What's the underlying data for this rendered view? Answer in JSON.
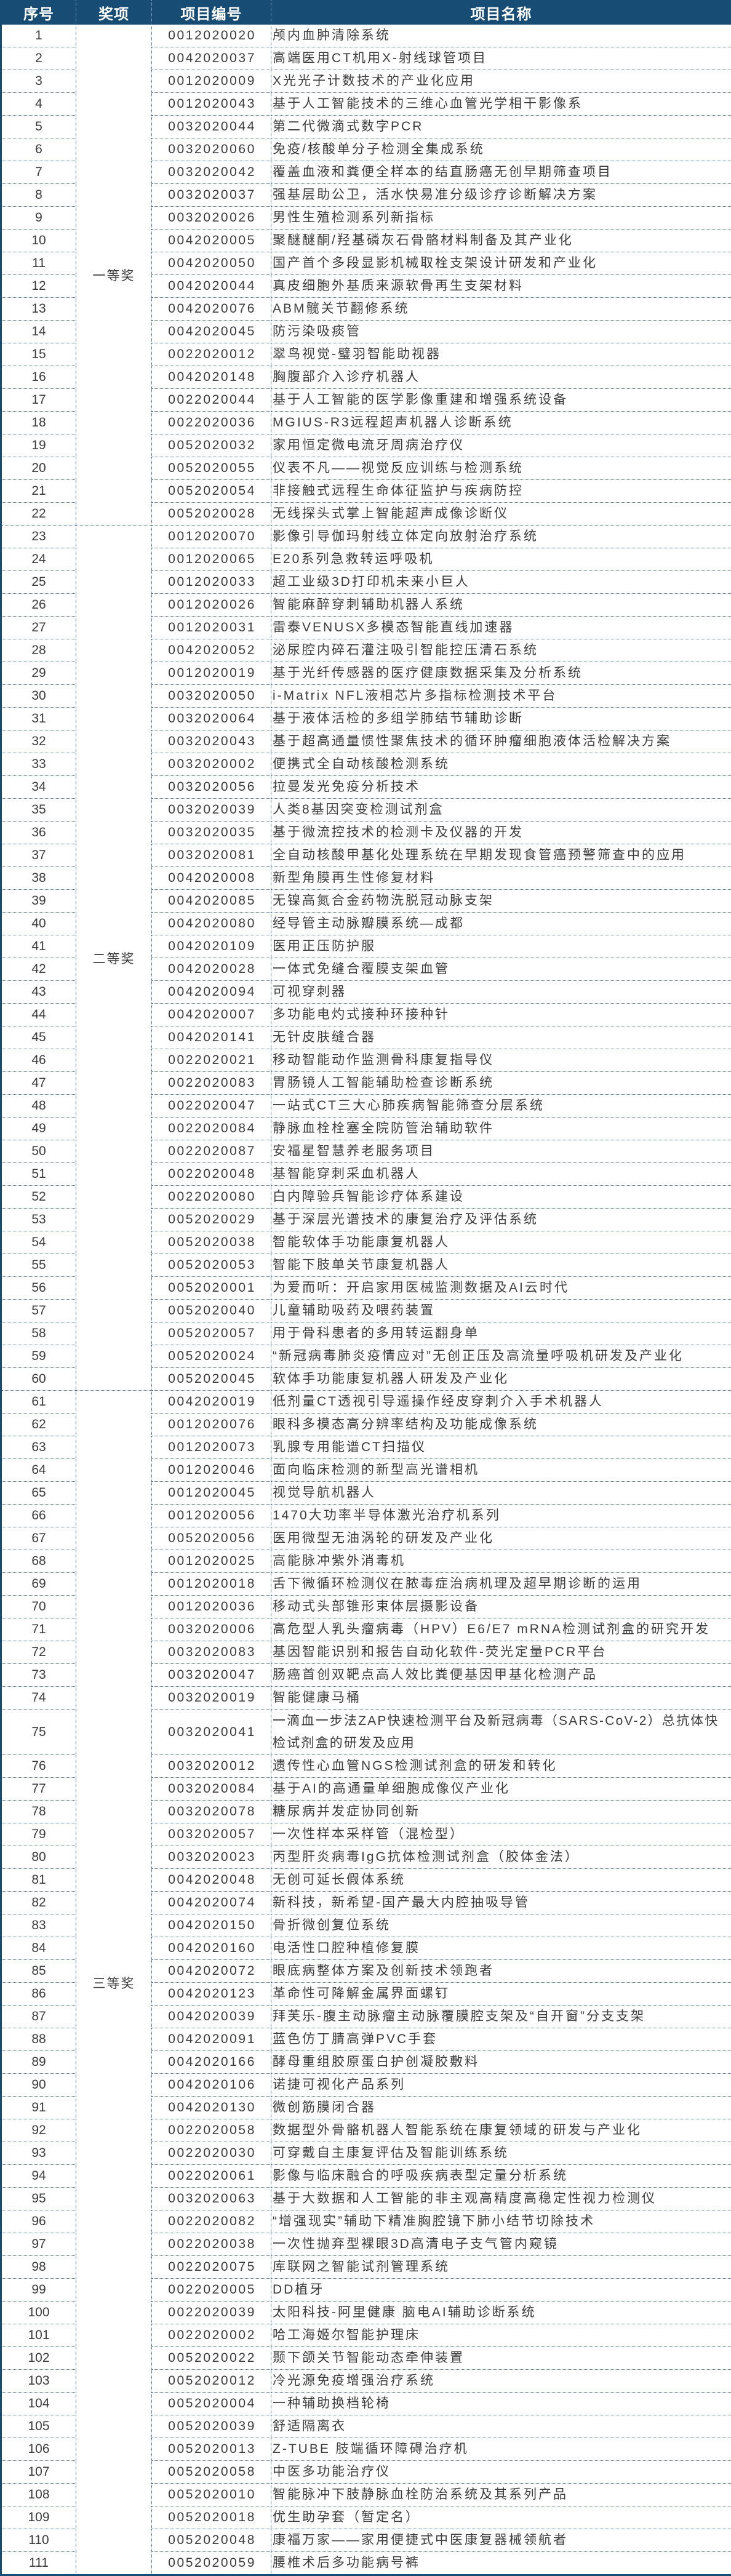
{
  "header": {
    "no": "序号",
    "award": "奖项",
    "code": "项目编号",
    "name": "项目名称"
  },
  "groups": [
    {
      "award": "一等奖",
      "rows": [
        [
          "1",
          "0012020020",
          "颅内血肿清除系统"
        ],
        [
          "2",
          "0042020037",
          "高端医用CT机用X-射线球管项目"
        ],
        [
          "3",
          "0012020009",
          "X光光子计数技术的产业化应用"
        ],
        [
          "4",
          "0012020043",
          "基于人工智能技术的三维心血管光学相干影像系"
        ],
        [
          "5",
          "0032020044",
          "第二代微滴式数字PCR"
        ],
        [
          "6",
          "0032020060",
          "免疫/核酸单分子检测全集成系统"
        ],
        [
          "7",
          "0032020042",
          "覆盖血液和粪便全样本的结直肠癌无创早期筛查项目"
        ],
        [
          "8",
          "0032020037",
          "强基层助公卫，活水快易准分级诊疗诊断解决方案"
        ],
        [
          "9",
          "0032020026",
          "男性生殖检测系列新指标"
        ],
        [
          "10",
          "0042020005",
          "聚醚醚酮/羟基磷灰石骨骼材料制备及其产业化"
        ],
        [
          "11",
          "0042020050",
          "国产首个多段显影机械取栓支架设计研发和产业化"
        ],
        [
          "12",
          "0042020044",
          "真皮细胞外基质来源软骨再生支架材料"
        ],
        [
          "13",
          "0042020076",
          "ABM髋关节翻修系统"
        ],
        [
          "14",
          "0042020045",
          "防污染吸痰管"
        ],
        [
          "15",
          "0022020012",
          "翠鸟视觉-璧羽智能助视器"
        ],
        [
          "16",
          "0042020148",
          "胸腹部介入诊疗机器人"
        ],
        [
          "17",
          "0022020044",
          "基于人工智能的医学影像重建和增强系统设备"
        ],
        [
          "18",
          "0022020036",
          "MGIUS-R3远程超声机器人诊断系统"
        ],
        [
          "19",
          "0052020032",
          "家用恒定微电流牙周病治疗仪"
        ],
        [
          "20",
          "0052020055",
          "仪表不凡——视觉反应训练与检测系统"
        ],
        [
          "21",
          "0052020054",
          "非接触式远程生命体征监护与疾病防控"
        ],
        [
          "22",
          "0052020028",
          "无线探头式掌上智能超声成像诊断仪"
        ]
      ]
    },
    {
      "award": "二等奖",
      "rows": [
        [
          "23",
          "0012020070",
          "影像引导伽玛射线立体定向放射治疗系统"
        ],
        [
          "24",
          "0012020065",
          "E20系列急救转运呼吸机"
        ],
        [
          "25",
          "0012020033",
          "超工业级3D打印机未来小巨人"
        ],
        [
          "26",
          "0012020026",
          "智能麻醉穿刺辅助机器人系统"
        ],
        [
          "27",
          "0012020031",
          "雷泰VENUSX多模态智能直线加速器"
        ],
        [
          "28",
          "0042020052",
          "泌尿腔内碎石灌注吸引智能控压清石系统"
        ],
        [
          "29",
          "0012020019",
          "基于光纤传感器的医疗健康数据采集及分析系统"
        ],
        [
          "30",
          "0032020050",
          "i-Matrix NFL液相芯片多指标检测技术平台"
        ],
        [
          "31",
          "0032020064",
          "基于液体活检的多组学肺结节辅助诊断"
        ],
        [
          "32",
          "0032020043",
          "基于超高通量惯性聚焦技术的循环肿瘤细胞液体活检解决方案"
        ],
        [
          "33",
          "0032020002",
          "便携式全自动核酸检测系统"
        ],
        [
          "34",
          "0032020056",
          "拉曼发光免疫分析技术"
        ],
        [
          "35",
          "0032020039",
          "人类8基因突变检测试剂盒"
        ],
        [
          "36",
          "0032020035",
          "基于微流控技术的检测卡及仪器的开发"
        ],
        [
          "37",
          "0032020081",
          "全自动核酸甲基化处理系统在早期发现食管癌预警筛查中的应用"
        ],
        [
          "38",
          "0042020008",
          "新型角膜再生性修复材料"
        ],
        [
          "39",
          "0042020085",
          "无镍高氮合金药物洗脱冠动脉支架"
        ],
        [
          "40",
          "0042020080",
          "经导管主动脉瓣膜系统—成都"
        ],
        [
          "41",
          "0042020109",
          "医用正压防护服"
        ],
        [
          "42",
          "0042020028",
          "一体式免缝合覆膜支架血管"
        ],
        [
          "43",
          "0042020094",
          "可视穿刺器"
        ],
        [
          "44",
          "0042020007",
          "多功能电灼式接种环接种针"
        ],
        [
          "45",
          "0042020141",
          "无针皮肤缝合器"
        ],
        [
          "46",
          "0022020021",
          "移动智能动作监测骨科康复指导仪"
        ],
        [
          "47",
          "0022020083",
          "胃肠镜人工智能辅助检查诊断系统"
        ],
        [
          "48",
          "0022020047",
          "一站式CT三大心肺疾病智能筛查分层系统"
        ],
        [
          "49",
          "0022020084",
          "静脉血栓栓塞全院防管治辅助软件"
        ],
        [
          "50",
          "0022020087",
          "安福星智慧养老服务项目"
        ],
        [
          "51",
          "0022020048",
          "基智能穿刺采血机器人"
        ],
        [
          "52",
          "0022020080",
          "白内障验兵智能诊疗体系建设"
        ],
        [
          "53",
          "0052020029",
          "基于深层光谱技术的康复治疗及评估系统"
        ],
        [
          "54",
          "0052020038",
          "智能软体手功能康复机器人"
        ],
        [
          "55",
          "0052020053",
          "智能下肢单关节康复机器人"
        ],
        [
          "56",
          "0052020001",
          "为爱而听：开启家用医械监测数据及AI云时代"
        ],
        [
          "57",
          "0052020040",
          "儿童辅助吸药及喂药装置"
        ],
        [
          "58",
          "0052020057",
          "用于骨科患者的多用转运翻身单"
        ],
        [
          "59",
          "0052020024",
          "“新冠病毒肺炎疫情应对”无创正压及高流量呼吸机研发及产业化"
        ],
        [
          "60",
          "0052020045",
          "软体手功能康复机器人研发及产业化"
        ]
      ]
    },
    {
      "award": "三等奖",
      "rows": [
        [
          "61",
          "0042020019",
          "低剂量CT透视引导遥操作经皮穿刺介入手术机器人"
        ],
        [
          "62",
          "0012020076",
          "眼科多模态高分辨率结构及功能成像系统"
        ],
        [
          "63",
          "0012020073",
          "乳腺专用能谱CT扫描仪"
        ],
        [
          "64",
          "0012020046",
          "面向临床检测的新型高光谱相机"
        ],
        [
          "65",
          "0012020045",
          "视觉导航机器人"
        ],
        [
          "66",
          "0012020056",
          "1470大功率半导体激光治疗机系列"
        ],
        [
          "67",
          "0052020056",
          "医用微型无油涡轮的研发及产业化"
        ],
        [
          "68",
          "0012020025",
          "高能脉冲紫外消毒机"
        ],
        [
          "69",
          "0012020018",
          "舌下微循环检测仪在脓毒症治病机理及超早期诊断的运用"
        ],
        [
          "70",
          "0012020036",
          "移动式头部锥形束体层摄影设备"
        ],
        [
          "71",
          "0032020006",
          "高危型人乳头瘤病毒（HPV）E6/E7 mRNA检测试剂盒的研究开发"
        ],
        [
          "72",
          "0032020083",
          "基因智能识别和报告自动化软件-荧光定量PCR平台"
        ],
        [
          "73",
          "0032020047",
          "肠癌首创双靶点高人效比粪便基因甲基化检测产品"
        ],
        [
          "74",
          "0032020019",
          "智能健康马桶"
        ],
        [
          "75",
          "0032020041",
          "一滴血一步法ZAP快速检测平台及新冠病毒（SARS-CoV-2）总抗体快检试剂盒的研发及应用"
        ],
        [
          "76",
          "0032020012",
          "遗传性心血管NGS检测试剂盒的研发和转化"
        ],
        [
          "77",
          "0032020084",
          "基于AI的高通量单细胞成像仪产业化"
        ],
        [
          "78",
          "0032020078",
          "糖尿病并发症协同创新"
        ],
        [
          "79",
          "0032020057",
          "一次性样本采样管（混检型）"
        ],
        [
          "80",
          "0032020023",
          "丙型肝炎病毒IgG抗体检测试剂盒（胶体金法）"
        ],
        [
          "81",
          "0042020048",
          "无创可延长假体系统"
        ],
        [
          "82",
          "0042020074",
          "新科技，新希望-国产最大内腔抽吸导管"
        ],
        [
          "83",
          "0042020150",
          "骨折微创复位系统"
        ],
        [
          "84",
          "0042020160",
          "电活性口腔种植修复膜"
        ],
        [
          "85",
          "0042020072",
          "眼底病整体方案及创新技术领跑者"
        ],
        [
          "86",
          "0042020123",
          "革命性可降解金属界面螺钉"
        ],
        [
          "87",
          "0042020039",
          "拜芙乐-腹主动脉瘤主动脉覆膜腔支架及“自开窗”分支支架"
        ],
        [
          "88",
          "0042020091",
          "蓝色仿丁腈高弹PVC手套"
        ],
        [
          "89",
          "0042020166",
          "酵母重组胶原蛋白护创凝胶敷料"
        ],
        [
          "90",
          "0042020106",
          "诺捷可视化产品系列"
        ],
        [
          "91",
          "0042020130",
          "微创筋膜闭合器"
        ],
        [
          "92",
          "0022020058",
          "数据型外骨骼机器人智能系统在康复领域的研发与产业化"
        ],
        [
          "93",
          "0022020030",
          "可穿戴自主康复评估及智能训练系统"
        ],
        [
          "94",
          "0022020061",
          "影像与临床融合的呼吸疾病表型定量分析系统"
        ],
        [
          "95",
          "0032020063",
          "基于大数据和人工智能的非主观高精度高稳定性视力检测仪"
        ],
        [
          "96",
          "0022020082",
          "“增强现实”辅助下精准胸腔镜下肺小结节切除技术"
        ],
        [
          "97",
          "0022020038",
          "一次性抛弃型裸眼3D高清电子支气管内窥镜"
        ],
        [
          "98",
          "0022020075",
          "库联网之智能试剂管理系统"
        ],
        [
          "99",
          "0022020005",
          "DD植牙"
        ],
        [
          "100",
          "0022020039",
          "太阳科技-阿里健康 脑电AI辅助诊断系统"
        ],
        [
          "101",
          "0022020002",
          "哈工海姬尔智能护理床"
        ],
        [
          "102",
          "0052020022",
          "颞下颌关节智能动态牵伸装置"
        ],
        [
          "103",
          "0052020012",
          "冷光源免疫增强治疗系统"
        ],
        [
          "104",
          "0052020004",
          "一种辅助换档轮椅"
        ],
        [
          "105",
          "0052020039",
          "舒适隔离衣"
        ],
        [
          "106",
          "0052020013",
          "Z-TUBE 肢端循环障碍治疗机"
        ],
        [
          "107",
          "0052020058",
          "中医多功能治疗仪"
        ],
        [
          "108",
          "0052020010",
          "智能脉冲下肢静脉血栓防治系统及其系列产品"
        ],
        [
          "109",
          "0052020018",
          "优生助孕套（暂定名）"
        ],
        [
          "110",
          "0052020048",
          "康福万家——家用便捷式中医康复器械领航者"
        ],
        [
          "111",
          "0052020059",
          "腰椎术后多功能病号裤"
        ]
      ]
    }
  ]
}
